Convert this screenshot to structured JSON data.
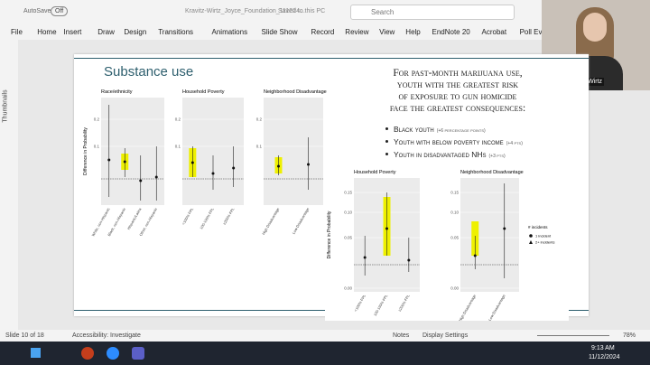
{
  "titlebar": {
    "autosave": "AutoSave",
    "autosave_state": "Off",
    "filename": "Kravitz-Wirtz_Joyce_Foundation_111224...",
    "saved": "Saved to this PC",
    "search": "Search"
  },
  "menu": [
    "File",
    "Home",
    "Insert",
    "Draw",
    "Design",
    "Transitions",
    "Animations",
    "Slide Show",
    "Record",
    "Review",
    "View",
    "Help",
    "EndNote 20",
    "Acrobat",
    "Poll Everywhere"
  ],
  "webcam": {
    "name": "Nicole Kravitz-Wirtz"
  },
  "sidebar": {
    "label": "Thumbnails"
  },
  "slide": {
    "title": "Substance use",
    "headline": [
      "For past-month marijuana use,",
      "youth with the greatest risk",
      "of exposure to gun homicide",
      "face the greatest consequences:"
    ],
    "bullets": [
      {
        "text": "Black youth",
        "note": "(+6 percentage points)"
      },
      {
        "text": "Youth with below poverty income",
        "note": "(+4 pts)"
      },
      {
        "text": "Youth in disadvantaged NHs",
        "note": "(+3 pts)"
      }
    ],
    "figure1": {
      "ylabel": "Difference in Probability",
      "yticks": [
        "0.2",
        "0.1",
        "0.0"
      ],
      "panels": [
        {
          "title": "Race/ethnicity",
          "categories": [
            "White, non-Hispanic",
            "Black, non-Hispanic",
            "Hispanic/Latinx",
            "Other, non-Hispanic"
          ]
        },
        {
          "title": "Household Poverty",
          "categories": [
            "<100% FPL",
            "100-199% FPL",
            "≥200% FPL"
          ]
        },
        {
          "title": "Neighborhood Disadvantage",
          "categories": [
            "High Disadvantage",
            "Low Disadvantage"
          ]
        }
      ]
    },
    "figure2": {
      "ylabel": "Difference in Probability",
      "yticks": [
        "0.15",
        "0.10",
        "0.05",
        "0.00",
        "-0.05"
      ],
      "panels": [
        {
          "title": "Household Poverty",
          "categories": [
            "<100% FPL",
            "100-199% FPL",
            "≥200% FPL"
          ]
        },
        {
          "title": "Neighborhood Disadvantage",
          "categories": [
            "High Disadvantage",
            "Low Disadvantage"
          ]
        }
      ],
      "legend": {
        "title": "# incidents",
        "items": [
          "1 incident",
          "2+ incidents"
        ]
      }
    }
  },
  "status": {
    "slide": "Slide 10 of 18",
    "accessibility": "Accessibility: Investigate",
    "notes": "Notes",
    "display": "Display Settings",
    "zoom": "78%"
  },
  "taskbar": {
    "time": "9:13 AM",
    "date": "11/12/2024"
  }
}
